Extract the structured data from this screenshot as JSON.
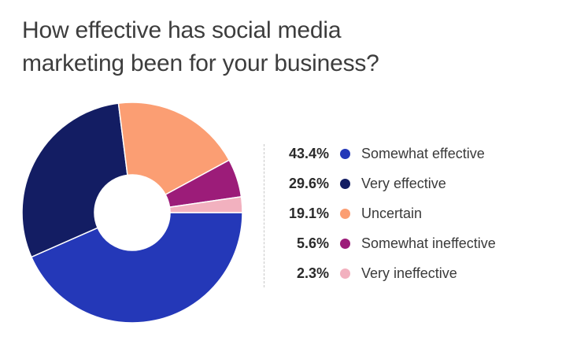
{
  "chart_data": {
    "type": "pie",
    "title_lines": [
      "How effective has social media",
      "marketing been for your business?"
    ],
    "value_suffix": "%",
    "slices": [
      {
        "label": "Somewhat effective",
        "value": 43.4,
        "color": "#2438b8"
      },
      {
        "label": "Very effective",
        "value": 29.6,
        "color": "#131d63"
      },
      {
        "label": "Uncertain",
        "value": 19.1,
        "color": "#fb9e73"
      },
      {
        "label": "Somewhat ineffective",
        "value": 5.6,
        "color": "#9c1c79"
      },
      {
        "label": "Very ineffective",
        "value": 2.3,
        "color": "#f2b1bf"
      }
    ],
    "donut": true,
    "legend_position": "right"
  }
}
